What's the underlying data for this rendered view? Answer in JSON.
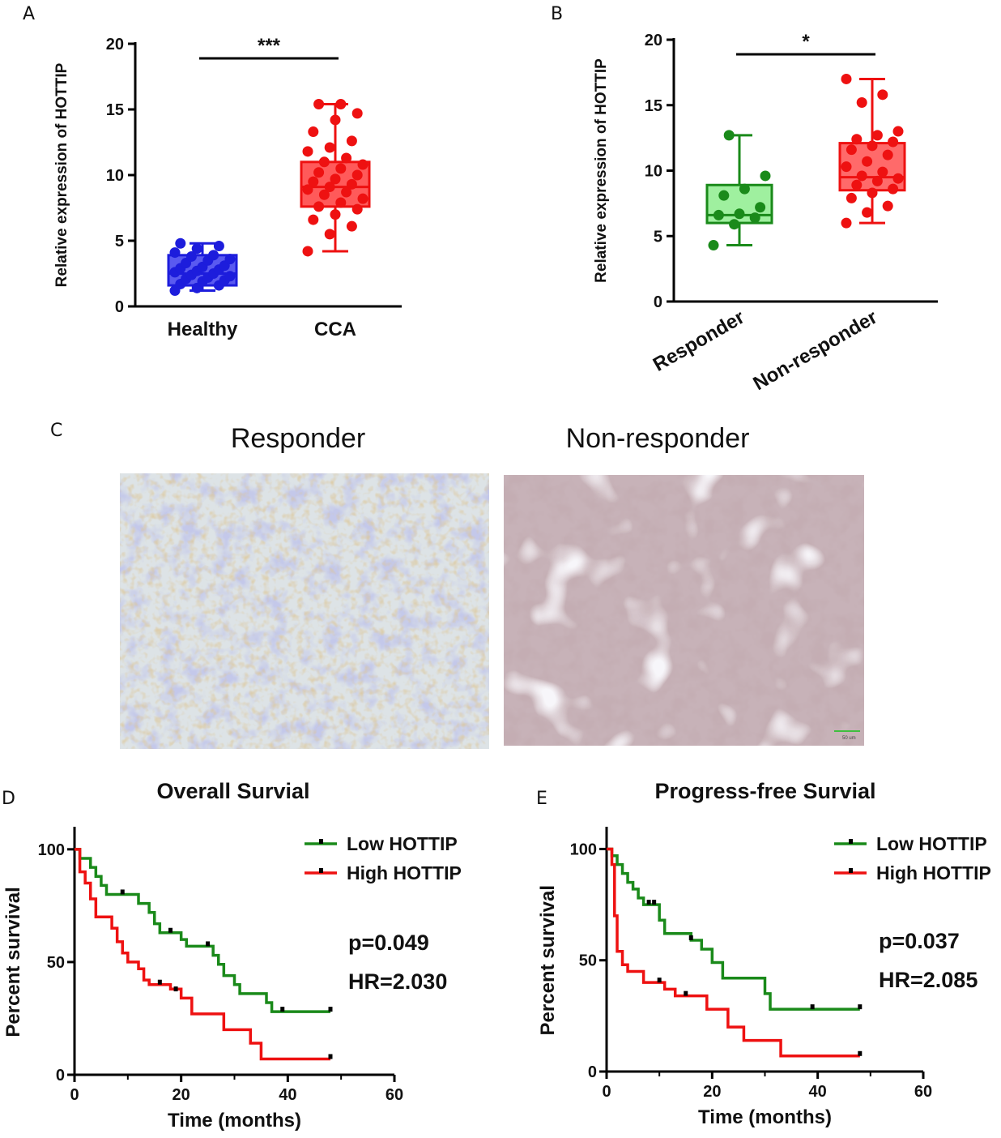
{
  "panels": {
    "a": "A",
    "b": "B",
    "c": "C",
    "d": "D",
    "e": "E"
  },
  "chart_data": [
    {
      "panel": "A",
      "type": "box",
      "ylabel": "Relative expression of HOTTIP",
      "ylim": [
        0,
        20
      ],
      "yticks": [
        0,
        5,
        10,
        15,
        20
      ],
      "categories": [
        "Healthy",
        "CCA"
      ],
      "significance": "***",
      "series": [
        {
          "name": "Healthy",
          "color": "#1d1ddc",
          "fill": "#5a5af0",
          "box": {
            "min": 1.2,
            "q1": 1.6,
            "median": 2.5,
            "q3": 3.9,
            "max": 4.8
          },
          "points": [
            1.2,
            1.4,
            1.6,
            1.7,
            1.9,
            2.0,
            2.1,
            2.2,
            2.3,
            2.4,
            2.5,
            2.6,
            2.7,
            2.8,
            2.9,
            3.0,
            3.1,
            3.3,
            3.5,
            3.6,
            3.8,
            3.9,
            4.1,
            4.4,
            4.6,
            4.8
          ]
        },
        {
          "name": "CCA",
          "color": "#ee1111",
          "fill": "#ff5a5a",
          "box": {
            "min": 4.2,
            "q1": 7.6,
            "median": 9.1,
            "q3": 11.0,
            "max": 15.4
          },
          "points": [
            4.2,
            5.5,
            6.1,
            6.6,
            7.0,
            7.4,
            7.6,
            7.9,
            8.2,
            8.5,
            8.7,
            8.9,
            9.1,
            9.3,
            9.5,
            9.7,
            10.0,
            10.2,
            10.5,
            10.8,
            11.0,
            11.3,
            11.8,
            12.1,
            12.6,
            13.3,
            14.2,
            14.7,
            15.4,
            15.4
          ]
        }
      ]
    },
    {
      "panel": "B",
      "type": "box",
      "ylabel": "Relative expression of HOTTIP",
      "ylim": [
        0,
        20
      ],
      "yticks": [
        0,
        5,
        10,
        15,
        20
      ],
      "categories": [
        "Responder",
        "Non-responder"
      ],
      "significance": "*",
      "series": [
        {
          "name": "Responder",
          "color": "#1a8a1a",
          "fill": "#9ff09f",
          "box": {
            "min": 4.3,
            "q1": 6.0,
            "median": 6.6,
            "q3": 8.9,
            "max": 12.7
          },
          "points": [
            4.3,
            5.9,
            6.4,
            6.6,
            6.7,
            7.2,
            8.1,
            8.6,
            9.6,
            12.7
          ]
        },
        {
          "name": "Non-responder",
          "color": "#ee1111",
          "fill": "#ff6a6a",
          "box": {
            "min": 6.0,
            "q1": 8.5,
            "median": 9.5,
            "q3": 12.1,
            "max": 17.0
          },
          "points": [
            6.0,
            6.8,
            7.3,
            7.9,
            8.3,
            8.6,
            8.9,
            9.2,
            9.4,
            9.6,
            9.9,
            10.3,
            10.7,
            11.2,
            11.6,
            11.9,
            12.2,
            12.4,
            12.7,
            13.0,
            15.2,
            15.8,
            17.0
          ]
        }
      ]
    },
    {
      "panel": "D",
      "type": "line",
      "title": "Overall Survial",
      "xlabel": "Time (months)",
      "ylabel": "Percent survival",
      "xlim": [
        0,
        60
      ],
      "ylim": [
        0,
        110
      ],
      "xticks": [
        0,
        20,
        40,
        60
      ],
      "yticks": [
        0,
        50,
        100
      ],
      "legend_position": "top-right",
      "annotations": [
        "p=0.049",
        "HR=2.030"
      ],
      "series": [
        {
          "name": "Low  HOTTIP",
          "color": "#1a8a1a",
          "steps": [
            [
              0,
              100
            ],
            [
              1,
              96
            ],
            [
              3,
              92
            ],
            [
              4,
              88
            ],
            [
              5,
              84
            ],
            [
              6,
              80
            ],
            [
              12,
              76
            ],
            [
              14,
              72
            ],
            [
              15,
              67
            ],
            [
              16,
              63
            ],
            [
              20,
              60
            ],
            [
              21,
              57
            ],
            [
              26,
              53
            ],
            [
              27,
              49
            ],
            [
              28,
              44
            ],
            [
              30,
              40
            ],
            [
              31,
              36
            ],
            [
              36,
              32
            ],
            [
              37,
              28
            ],
            [
              48,
              28
            ]
          ],
          "censors": [
            [
              9,
              80
            ],
            [
              18,
              63
            ],
            [
              25,
              57
            ],
            [
              39,
              28
            ],
            [
              48,
              28
            ]
          ]
        },
        {
          "name": "High HOTTIP",
          "color": "#ee1111",
          "steps": [
            [
              0,
              100
            ],
            [
              1,
              90
            ],
            [
              2,
              85
            ],
            [
              3,
              78
            ],
            [
              4,
              70
            ],
            [
              7,
              65
            ],
            [
              8,
              59
            ],
            [
              9,
              54
            ],
            [
              10,
              50
            ],
            [
              12,
              47
            ],
            [
              13,
              42
            ],
            [
              14,
              40
            ],
            [
              18,
              38
            ],
            [
              20,
              34
            ],
            [
              22,
              27
            ],
            [
              28,
              20
            ],
            [
              33,
              14
            ],
            [
              35,
              7
            ],
            [
              48,
              7
            ]
          ],
          "censors": [
            [
              16,
              40
            ],
            [
              19,
              37
            ],
            [
              48,
              7
            ]
          ]
        }
      ]
    },
    {
      "panel": "E",
      "type": "line",
      "title": "Progress-free Survial",
      "xlabel": "Time (months)",
      "ylabel": "Percent survival",
      "xlim": [
        0,
        60
      ],
      "ylim": [
        0,
        110
      ],
      "xticks": [
        0,
        20,
        40,
        60
      ],
      "yticks": [
        0,
        50,
        100
      ],
      "legend_position": "top-right",
      "annotations": [
        "p=0.037",
        "HR=2.085"
      ],
      "series": [
        {
          "name": "Low  HOTTIP",
          "color": "#1a8a1a",
          "steps": [
            [
              0,
              100
            ],
            [
              1,
              97
            ],
            [
              2,
              93
            ],
            [
              3,
              89
            ],
            [
              4,
              85
            ],
            [
              5,
              82
            ],
            [
              6,
              78
            ],
            [
              7,
              75
            ],
            [
              10,
              68
            ],
            [
              11,
              62
            ],
            [
              16,
              59
            ],
            [
              18,
              55
            ],
            [
              20,
              49
            ],
            [
              22,
              42
            ],
            [
              30,
              35
            ],
            [
              31,
              28
            ],
            [
              48,
              28
            ]
          ],
          "censors": [
            [
              8,
              75
            ],
            [
              9,
              75
            ],
            [
              16,
              59
            ],
            [
              39,
              28
            ],
            [
              48,
              28
            ]
          ]
        },
        {
          "name": "High HOTTIP",
          "color": "#ee1111",
          "steps": [
            [
              0,
              100
            ],
            [
              1,
              93
            ],
            [
              1.5,
              70
            ],
            [
              2,
              54
            ],
            [
              3,
              48
            ],
            [
              4,
              45
            ],
            [
              7,
              40
            ],
            [
              11,
              37
            ],
            [
              13,
              34
            ],
            [
              19,
              28
            ],
            [
              23,
              20
            ],
            [
              26,
              14
            ],
            [
              33,
              7
            ],
            [
              48,
              7
            ]
          ],
          "censors": [
            [
              10,
              40
            ],
            [
              15,
              34
            ],
            [
              48,
              7
            ]
          ]
        }
      ]
    }
  ],
  "micrographs": {
    "titles": [
      "Responder",
      "Non-responder"
    ],
    "scalebar_label": "50 um"
  }
}
